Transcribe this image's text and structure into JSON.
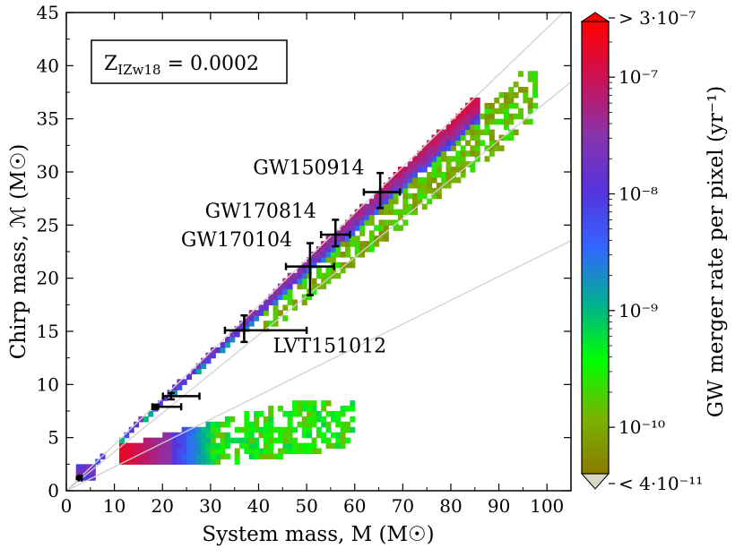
{
  "chart_data": {
    "type": "heatmap",
    "xlabel": "System mass, M (M☉)",
    "ylabel": "Chirp mass, ℳ (M☉)",
    "xlim": [
      0,
      105
    ],
    "ylim": [
      0,
      45
    ],
    "x_ticks": [
      "0",
      "10",
      "20",
      "30",
      "40",
      "50",
      "60",
      "70",
      "80",
      "90",
      "100"
    ],
    "y_ticks": [
      "0",
      "5",
      "10",
      "15",
      "20",
      "25",
      "30",
      "35",
      "40",
      "45"
    ],
    "inset_label": "Z_IZw18 = 0.0002",
    "inset_main": "Z",
    "inset_sub": "IZw18",
    "inset_rest": " = 0.0002",
    "colorbar": {
      "label": "GW merger rate per pixel (yr⁻¹)",
      "scale": "log",
      "range": [
        4e-11,
        3e-07
      ],
      "tick_labels": [
        "> 3·10⁻⁷",
        "10⁻⁷",
        "10⁻⁸",
        "10⁻⁹",
        "10⁻¹⁰",
        "< 4·10⁻¹¹"
      ],
      "colors": [
        "#8a7a00",
        "#78b400",
        "#00ff00",
        "#00b090",
        "#3366ff",
        "#5533dd",
        "#8833aa",
        "#cc1155",
        "#ff0000"
      ]
    },
    "reference_lines_q": [
      1,
      3,
      10
    ],
    "events": [
      {
        "name": "GW150914",
        "M": 65.3,
        "M_err": [
          3.4,
          4.1
        ],
        "Mc": 28.1,
        "Mc_err": [
          1.5,
          1.8
        ]
      },
      {
        "name": "GW170814",
        "M": 56.0,
        "M_err": [
          3.0,
          3.0
        ],
        "Mc": 24.1,
        "Mc_err": [
          1.1,
          1.4
        ]
      },
      {
        "name": "GW170104",
        "M": 50.7,
        "M_err": [
          5.0,
          5.0
        ],
        "Mc": 21.1,
        "Mc_err": [
          2.7,
          2.2
        ]
      },
      {
        "name": "LVT151012",
        "M": 37.0,
        "M_err": [
          4.0,
          13.0
        ],
        "Mc": 15.1,
        "Mc_err": [
          1.1,
          1.4
        ]
      },
      {
        "name": "",
        "M": 21.8,
        "M_err": [
          1.7,
          5.9
        ],
        "Mc": 8.9,
        "Mc_err": [
          0.3,
          0.3
        ]
      },
      {
        "name": "",
        "M": 18.6,
        "M_err": [
          0.7,
          5.3
        ],
        "Mc": 7.9,
        "Mc_err": [
          0.2,
          0.2
        ]
      },
      {
        "name": "",
        "M": 2.7,
        "M_err": [
          0.1,
          0.5
        ],
        "Mc": 1.2,
        "Mc_err": [
          0.1,
          0.1
        ]
      }
    ]
  }
}
